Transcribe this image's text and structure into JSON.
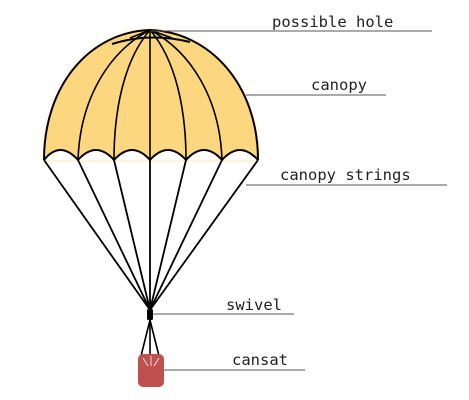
{
  "colors": {
    "canopy_fill": "#fdd77f",
    "canopy_glow": "#fbe3a0",
    "outline": "#000000",
    "cansat_fill": "#c0504d",
    "leader_line": "#555555"
  },
  "labels": {
    "possible_hole": "possible hole",
    "canopy": "canopy",
    "canopy_strings": "canopy strings",
    "swivel": "swivel",
    "cansat": "cansat"
  }
}
